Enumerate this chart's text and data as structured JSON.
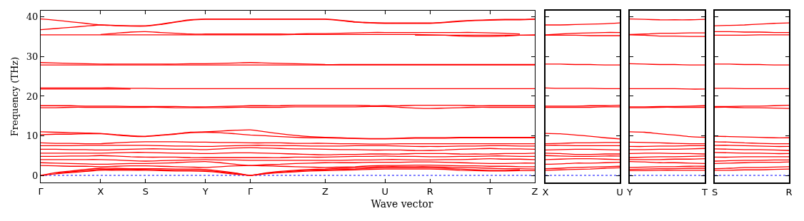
{
  "chart_data": [
    {
      "type": "line",
      "ylabel": "Frequency (THz)",
      "xlabel": "Wave vector",
      "color": "#ff0000",
      "line_style": "solid",
      "marker": "none",
      "grid": false,
      "categories": [
        "Γ",
        null,
        null,
        null,
        "X",
        null,
        null,
        "S",
        null,
        null,
        null,
        "Y",
        null,
        null,
        "Γ",
        null,
        null,
        null,
        null,
        "Z",
        null,
        null,
        null,
        "U",
        null,
        null,
        "R",
        null,
        null,
        null,
        "T",
        null,
        null,
        "Z"
      ],
      "ylim": [
        -1.8,
        41.6
      ],
      "yticks": [
        0,
        10,
        20,
        30,
        40
      ],
      "ref_lines": [
        {
          "axis": "y",
          "value": 0,
          "color": "#0000ff",
          "line_style": "dotted"
        }
      ],
      "series": [
        {
          "values": [
            39.5,
            39.2,
            38.8,
            38.4,
            38.0,
            37.9,
            37.8,
            37.8,
            38.2,
            38.8,
            39.3,
            39.5,
            39.5,
            39.5,
            39.5,
            39.5,
            39.5,
            39.5,
            39.5,
            39.5,
            39.2,
            38.8,
            38.6,
            38.5,
            38.5,
            38.5,
            38.5,
            38.7,
            39.0,
            39.2,
            39.3,
            39.4,
            39.4,
            39.5
          ]
        },
        {
          "values": [
            36.8,
            37.1,
            37.4,
            37.7,
            38.0,
            37.8,
            37.7,
            37.7,
            38.1,
            38.7,
            39.2,
            39.4,
            39.4,
            39.4,
            39.4,
            39.4,
            39.4,
            39.4,
            39.4,
            39.4,
            39.1,
            38.7,
            38.5,
            38.4,
            38.4,
            38.4,
            38.4,
            38.6,
            38.9,
            39.1,
            39.2,
            39.3,
            39.3,
            39.4
          ]
        },
        {
          "values": [
            null,
            null,
            null,
            null,
            35.6,
            35.9,
            36.2,
            36.3,
            36.1,
            35.9,
            35.7,
            35.7,
            35.7,
            35.7,
            35.7,
            35.7,
            35.7,
            35.7,
            35.8,
            35.8,
            35.9,
            36.0,
            36.1,
            36.1,
            36.1,
            36.1,
            36.1,
            36.1,
            36.1,
            36.1,
            36.0,
            35.9,
            35.7,
            null
          ]
        },
        {
          "values": [
            35.5,
            35.5,
            35.5,
            35.5,
            35.5,
            35.5,
            35.5,
            35.5,
            35.5,
            35.5,
            35.5,
            35.5,
            35.5,
            35.5,
            35.5,
            35.5,
            35.5,
            35.6,
            35.6,
            35.6,
            35.6,
            35.6,
            35.6,
            35.6,
            35.6,
            35.6,
            35.5,
            35.4,
            35.2,
            35.1,
            35.1,
            35.2,
            35.4,
            35.5
          ]
        },
        {
          "values": [
            null,
            null,
            null,
            null,
            null,
            null,
            null,
            null,
            null,
            null,
            null,
            null,
            null,
            null,
            null,
            null,
            null,
            null,
            null,
            null,
            null,
            null,
            null,
            null,
            null,
            35.4,
            35.4,
            35.4,
            35.4,
            35.4,
            35.4,
            35.4,
            35.4,
            35.4
          ]
        },
        {
          "values": [
            28.5,
            28.4,
            28.3,
            28.2,
            28.1,
            28.1,
            28.1,
            28.1,
            28.1,
            28.1,
            28.2,
            28.2,
            28.3,
            28.4,
            28.5,
            28.4,
            28.3,
            28.2,
            28.1,
            28.0,
            28.0,
            28.0,
            28.0,
            28.0,
            28.0,
            28.0,
            28.0,
            28.0,
            28.0,
            28.0,
            28.0,
            28.0,
            28.0,
            28.0
          ]
        },
        {
          "values": [
            27.9,
            27.9,
            27.9,
            27.9,
            27.9,
            27.9,
            27.9,
            27.9,
            27.9,
            27.9,
            27.9,
            27.9,
            27.9,
            27.9,
            27.9,
            27.9,
            27.9,
            27.9,
            27.9,
            27.9,
            27.9,
            27.9,
            27.9,
            27.9,
            27.9,
            27.9,
            27.9,
            27.9,
            27.9,
            27.9,
            27.9,
            27.9,
            27.9,
            27.9
          ]
        },
        {
          "values": [
            22.1,
            22.1,
            22.1,
            22.1,
            22.1,
            22.1,
            22.0,
            22.0,
            21.9,
            21.9,
            21.9,
            21.9,
            21.9,
            21.9,
            21.9,
            21.9,
            21.9,
            21.9,
            21.9,
            21.9,
            21.9,
            21.9,
            21.9,
            21.9,
            21.9,
            21.9,
            21.9,
            21.9,
            21.9,
            21.9,
            21.9,
            21.9,
            21.9,
            21.9
          ]
        },
        {
          "values": [
            21.8,
            21.8,
            21.8,
            21.8,
            21.8,
            21.8,
            21.8,
            null,
            null,
            null,
            null,
            null,
            null,
            null,
            null,
            null,
            null,
            null,
            null,
            null,
            null,
            null,
            null,
            null,
            null,
            null,
            null,
            null,
            null,
            null,
            null,
            null,
            null,
            null
          ]
        },
        {
          "values": [
            17.6,
            17.6,
            17.6,
            17.5,
            17.5,
            17.5,
            17.4,
            17.4,
            17.4,
            17.4,
            17.3,
            17.3,
            17.4,
            17.5,
            17.6,
            17.6,
            17.6,
            17.7,
            17.7,
            17.7,
            17.7,
            17.7,
            17.6,
            17.6,
            17.6,
            17.7,
            17.7,
            17.7,
            17.7,
            17.6,
            17.6,
            17.6,
            17.6,
            17.6
          ]
        },
        {
          "values": [
            17.1,
            17.1,
            17.2,
            17.2,
            17.2,
            17.2,
            17.2,
            17.2,
            17.2,
            17.1,
            17.1,
            17.1,
            17.1,
            17.2,
            17.2,
            17.2,
            17.2,
            17.3,
            17.3,
            17.3,
            17.3,
            17.3,
            17.4,
            17.4,
            17.2,
            17.0,
            16.9,
            17.0,
            17.1,
            17.2,
            17.2,
            17.2,
            17.2,
            17.2
          ]
        },
        {
          "values": [
            11.0,
            10.9,
            10.8,
            10.7,
            10.6,
            10.3,
            10.0,
            9.9,
            10.2,
            10.5,
            10.9,
            11.0,
            11.2,
            11.4,
            11.5,
            11.0,
            10.5,
            10.1,
            9.8,
            9.6,
            9.5,
            9.4,
            9.3,
            9.3,
            9.4,
            9.5,
            9.5,
            9.5,
            9.6,
            9.6,
            9.6,
            9.6,
            9.6,
            9.6
          ]
        },
        {
          "values": [
            10.3,
            10.4,
            10.4,
            10.5,
            10.5,
            10.2,
            9.9,
            9.8,
            10.1,
            10.4,
            10.8,
            10.9,
            10.8,
            10.5,
            10.2,
            10.0,
            9.8,
            9.6,
            9.5,
            9.5,
            9.4,
            9.3,
            9.2,
            9.2,
            9.3,
            9.4,
            9.4,
            9.4,
            9.5,
            9.5,
            9.5,
            9.5,
            9.5,
            9.5
          ]
        },
        {
          "values": [
            8.2,
            8.1,
            8.1,
            8.0,
            8.0,
            8.2,
            8.4,
            8.5,
            8.5,
            8.5,
            8.4,
            8.4,
            8.3,
            8.3,
            8.2,
            8.2,
            8.2,
            8.1,
            8.1,
            8.1,
            8.0,
            8.0,
            7.9,
            7.9,
            8.0,
            8.0,
            8.0,
            8.0,
            8.0,
            8.0,
            8.0,
            8.0,
            8.0,
            8.0
          ]
        },
        {
          "values": [
            7.5,
            7.5,
            7.5,
            7.6,
            7.6,
            7.6,
            7.6,
            7.6,
            7.5,
            7.4,
            7.4,
            7.3,
            7.4,
            7.5,
            7.6,
            7.6,
            7.5,
            7.5,
            7.4,
            7.4,
            7.4,
            7.5,
            7.5,
            7.5,
            7.4,
            7.3,
            7.3,
            7.3,
            7.4,
            7.4,
            7.5,
            7.5,
            7.4,
            7.4
          ]
        },
        {
          "values": [
            6.6,
            6.6,
            6.5,
            6.5,
            6.4,
            6.5,
            6.6,
            6.7,
            6.7,
            6.6,
            6.6,
            6.5,
            6.7,
            6.9,
            7.0,
            6.9,
            6.8,
            6.7,
            6.7,
            6.6,
            6.5,
            6.5,
            6.4,
            6.4,
            6.4,
            6.3,
            6.3,
            6.4,
            6.6,
            6.7,
            6.8,
            6.7,
            6.7,
            6.6
          ]
        },
        {
          "values": [
            5.6,
            5.6,
            5.6,
            5.6,
            5.6,
            5.7,
            5.8,
            5.8,
            5.7,
            5.6,
            5.6,
            5.5,
            5.6,
            5.7,
            5.7,
            5.6,
            5.5,
            5.4,
            5.3,
            5.2,
            5.3,
            5.3,
            5.4,
            5.4,
            5.4,
            5.5,
            5.5,
            5.5,
            5.4,
            5.4,
            5.4,
            5.5,
            5.5,
            5.6
          ]
        },
        {
          "values": [
            4.8,
            4.8,
            4.9,
            4.9,
            5.0,
            4.9,
            4.7,
            4.6,
            4.6,
            4.6,
            4.5,
            4.5,
            4.5,
            4.5,
            4.5,
            4.5,
            4.5,
            4.6,
            4.6,
            4.6,
            4.7,
            4.8,
            4.8,
            4.9,
            4.8,
            4.8,
            4.7,
            4.7,
            4.8,
            4.8,
            4.9,
            4.9,
            4.8,
            4.8
          ]
        },
        {
          "values": [
            4.0,
            4.0,
            4.0,
            4.0,
            4.0,
            3.9,
            3.7,
            3.6,
            3.7,
            3.8,
            3.9,
            4.0,
            3.9,
            3.9,
            3.8,
            3.8,
            3.8,
            3.8,
            3.8,
            3.8,
            3.8,
            3.9,
            3.9,
            4.0,
            4.0,
            3.9,
            3.9,
            4.0,
            4.0,
            4.1,
            4.2,
            4.1,
            4.1,
            4.0
          ]
        },
        {
          "values": [
            3.2,
            3.1,
            3.0,
            2.9,
            2.8,
            2.9,
            3.0,
            3.0,
            3.1,
            3.2,
            3.4,
            3.5,
            3.2,
            2.8,
            2.5,
            2.7,
            2.8,
            3.0,
            3.1,
            3.2,
            3.2,
            3.2,
            3.3,
            3.3,
            3.3,
            3.4,
            3.4,
            3.3,
            3.2,
            3.1,
            3.0,
            3.0,
            3.1,
            3.1
          ]
        },
        {
          "values": [
            2.5,
            2.4,
            2.3,
            2.3,
            2.2,
            2.3,
            2.4,
            2.4,
            2.3,
            2.2,
            2.1,
            2.0,
            2.2,
            2.4,
            2.5,
            2.4,
            2.3,
            2.2,
            2.1,
            2.0,
            2.1,
            2.2,
            2.4,
            2.5,
            2.5,
            2.6,
            2.6,
            2.5,
            2.4,
            2.4,
            2.3,
            2.3,
            2.2,
            2.2
          ]
        },
        {
          "values": [
            0,
            0.7,
            1.1,
            1.5,
            1.8,
            1.8,
            1.7,
            1.7,
            1.7,
            1.6,
            1.6,
            1.5,
            1.1,
            0.6,
            0,
            0.6,
            1.0,
            1.3,
            1.5,
            1.6,
            1.8,
            1.9,
            2.1,
            2.2,
            2.2,
            2.2,
            2.2,
            2.1,
            2.0,
            1.9,
            1.8,
            1.7,
            1.7,
            1.6
          ]
        },
        {
          "values": [
            null,
            0.5,
            0.9,
            1.2,
            1.5,
            1.5,
            1.5,
            1.5,
            1.4,
            1.3,
            1.3,
            1.2,
            0.9,
            0.5,
            0,
            0.5,
            0.8,
            1.1,
            1.3,
            1.4,
            1.5,
            1.6,
            1.8,
            1.9,
            1.9,
            1.9,
            1.9,
            1.8,
            1.6,
            1.4,
            1.3,
            1.3,
            1.4,
            null
          ]
        },
        {
          "values": [
            0,
            0.4,
            0.7,
            1.0,
            1.3,
            1.3,
            1.3,
            1.3,
            1.2,
            1.1,
            1.1,
            1.0,
            0.7,
            0.3,
            0,
            0.4,
            0.7,
            0.9,
            1.1,
            1.2,
            1.3,
            1.4,
            1.5,
            1.6,
            1.6,
            1.6,
            1.6,
            1.5,
            1.3,
            1.2,
            1.1,
            1.1,
            1.2,
            1.2
          ]
        }
      ]
    },
    {
      "type": "line",
      "color": "#ff0000",
      "line_style": "solid",
      "marker": "none",
      "grid": false,
      "tick_labels": "x",
      "categories": [
        "X",
        null,
        null,
        null,
        null,
        "U"
      ],
      "ylim": [
        -1.8,
        41.6
      ],
      "yticks": [
        0,
        10,
        20,
        30,
        40
      ],
      "ref_lines": [
        {
          "axis": "y",
          "value": 0,
          "color": "#0000ff",
          "line_style": "dotted"
        }
      ],
      "series": [
        {
          "values": [
            38.0,
            38.0,
            38.1,
            38.2,
            38.3,
            38.5
          ]
        },
        {
          "values": [
            35.5,
            35.7,
            35.9,
            36.0,
            36.1,
            36.1
          ]
        },
        {
          "values": [
            35.4,
            35.4,
            35.4,
            35.3,
            35.3,
            35.3
          ]
        },
        {
          "values": [
            28.1,
            28.1,
            28.0,
            28.0,
            27.9,
            27.9
          ]
        },
        {
          "values": [
            22.1,
            22.0,
            22.0,
            22.0,
            21.9,
            21.9
          ]
        },
        {
          "values": [
            17.5,
            17.5,
            17.5,
            17.6,
            17.6,
            17.7
          ]
        },
        {
          "values": [
            17.2,
            17.2,
            17.2,
            17.2,
            17.3,
            17.3
          ]
        },
        {
          "values": [
            10.6,
            10.5,
            10.2,
            9.9,
            9.5,
            9.2
          ]
        },
        {
          "values": [
            8.0,
            8.1,
            8.2,
            8.2,
            8.3,
            8.3
          ]
        },
        {
          "values": [
            7.6,
            7.6,
            7.5,
            7.5,
            7.5,
            7.5
          ]
        },
        {
          "values": [
            6.4,
            6.5,
            6.6,
            6.6,
            6.5,
            6.4
          ]
        },
        {
          "values": [
            5.6,
            5.5,
            5.3,
            5.3,
            5.4,
            5.4
          ]
        },
        {
          "values": [
            5.0,
            4.9,
            4.8,
            4.8,
            4.9,
            4.9
          ]
        },
        {
          "values": [
            4.0,
            4.1,
            4.2,
            4.2,
            4.1,
            4.0
          ]
        },
        {
          "values": [
            2.8,
            2.9,
            3.1,
            3.1,
            3.2,
            3.3
          ]
        },
        {
          "values": [
            1.7,
            1.8,
            2.0,
            2.1,
            2.2,
            2.3
          ]
        },
        {
          "values": [
            1.3,
            1.4,
            1.5,
            1.6,
            1.8,
            1.9
          ]
        }
      ]
    },
    {
      "type": "line",
      "color": "#ff0000",
      "line_style": "solid",
      "marker": "none",
      "grid": false,
      "tick_labels": "x",
      "categories": [
        "Y",
        null,
        null,
        null,
        null,
        "T"
      ],
      "ylim": [
        -1.8,
        41.6
      ],
      "yticks": [
        0,
        10,
        20,
        30,
        40
      ],
      "ref_lines": [
        {
          "axis": "y",
          "value": 0,
          "color": "#0000ff",
          "line_style": "dotted"
        }
      ],
      "series": [
        {
          "values": [
            39.5,
            39.4,
            39.3,
            39.3,
            39.3,
            39.4
          ]
        },
        {
          "values": [
            35.6,
            35.7,
            35.9,
            35.9,
            36.0,
            36.0
          ]
        },
        {
          "values": [
            35.5,
            35.4,
            35.2,
            35.2,
            35.1,
            35.1
          ]
        },
        {
          "values": [
            28.2,
            28.1,
            28.0,
            28.0,
            27.9,
            27.9
          ]
        },
        {
          "values": [
            21.9,
            21.9,
            21.9,
            21.9,
            21.8,
            21.8
          ]
        },
        {
          "values": [
            17.3,
            17.3,
            17.4,
            17.4,
            17.5,
            17.6
          ]
        },
        {
          "values": [
            17.1,
            17.1,
            17.2,
            17.2,
            17.2,
            17.2
          ]
        },
        {
          "values": [
            11.0,
            10.9,
            10.5,
            10.2,
            9.8,
            9.6
          ]
        },
        {
          "values": [
            8.4,
            8.3,
            8.2,
            8.1,
            8.0,
            8.0
          ]
        },
        {
          "values": [
            7.3,
            7.3,
            7.4,
            7.4,
            7.5,
            7.5
          ]
        },
        {
          "values": [
            6.5,
            6.5,
            6.6,
            6.6,
            6.7,
            6.8
          ]
        },
        {
          "values": [
            5.5,
            5.6,
            5.6,
            5.5,
            5.5,
            5.4
          ]
        },
        {
          "values": [
            4.5,
            4.6,
            4.7,
            4.7,
            4.8,
            4.9
          ]
        },
        {
          "values": [
            4.0,
            4.0,
            4.0,
            4.1,
            4.1,
            4.2
          ]
        },
        {
          "values": [
            3.5,
            3.4,
            3.2,
            3.2,
            3.1,
            3.0
          ]
        },
        {
          "values": [
            2.0,
            2.1,
            2.2,
            2.2,
            2.3,
            2.3
          ]
        },
        {
          "values": [
            1.5,
            1.6,
            1.7,
            1.7,
            1.8,
            1.8
          ]
        },
        {
          "values": [
            1.2,
            1.2,
            1.3,
            1.3,
            1.3,
            1.3
          ]
        }
      ]
    },
    {
      "type": "line",
      "color": "#ff0000",
      "line_style": "solid",
      "marker": "none",
      "grid": false,
      "tick_labels": "x",
      "categories": [
        "S",
        null,
        null,
        null,
        null,
        "R"
      ],
      "ylim": [
        -1.8,
        41.6
      ],
      "yticks": [
        0,
        10,
        20,
        30,
        40
      ],
      "ref_lines": [
        {
          "axis": "y",
          "value": 0,
          "color": "#0000ff",
          "line_style": "dotted"
        }
      ],
      "series": [
        {
          "values": [
            37.8,
            37.9,
            38.0,
            38.2,
            38.4,
            38.5
          ]
        },
        {
          "values": [
            36.3,
            36.3,
            36.2,
            36.2,
            36.1,
            36.1
          ]
        },
        {
          "values": [
            35.4,
            35.4,
            35.4,
            35.5,
            35.5,
            35.5
          ]
        },
        {
          "values": [
            28.1,
            28.1,
            28.0,
            28.0,
            27.9,
            27.9
          ]
        },
        {
          "values": [
            22.0,
            22.0,
            21.9,
            21.9,
            21.9,
            21.9
          ]
        },
        {
          "values": [
            17.4,
            17.4,
            17.5,
            17.5,
            17.6,
            17.7
          ]
        },
        {
          "values": [
            17.2,
            17.2,
            17.1,
            17.1,
            17.0,
            16.9
          ]
        },
        {
          "values": [
            9.9,
            9.8,
            9.7,
            9.6,
            9.5,
            9.5
          ]
        },
        {
          "values": [
            8.5,
            8.4,
            8.2,
            8.1,
            8.0,
            8.0
          ]
        },
        {
          "values": [
            7.6,
            7.6,
            7.5,
            7.4,
            7.3,
            7.3
          ]
        },
        {
          "values": [
            6.7,
            6.6,
            6.5,
            6.5,
            6.4,
            6.3
          ]
        },
        {
          "values": [
            5.8,
            5.7,
            5.6,
            5.6,
            5.5,
            5.5
          ]
        },
        {
          "values": [
            4.6,
            4.6,
            4.7,
            4.7,
            4.7,
            4.7
          ]
        },
        {
          "values": [
            3.6,
            3.7,
            3.8,
            3.8,
            3.9,
            3.9
          ]
        },
        {
          "values": [
            3.0,
            3.1,
            3.2,
            3.3,
            3.3,
            3.4
          ]
        },
        {
          "values": [
            1.7,
            1.8,
            2.0,
            2.0,
            2.1,
            2.2
          ]
        },
        {
          "values": [
            1.3,
            1.3,
            1.4,
            1.4,
            1.5,
            1.6
          ]
        }
      ]
    }
  ]
}
